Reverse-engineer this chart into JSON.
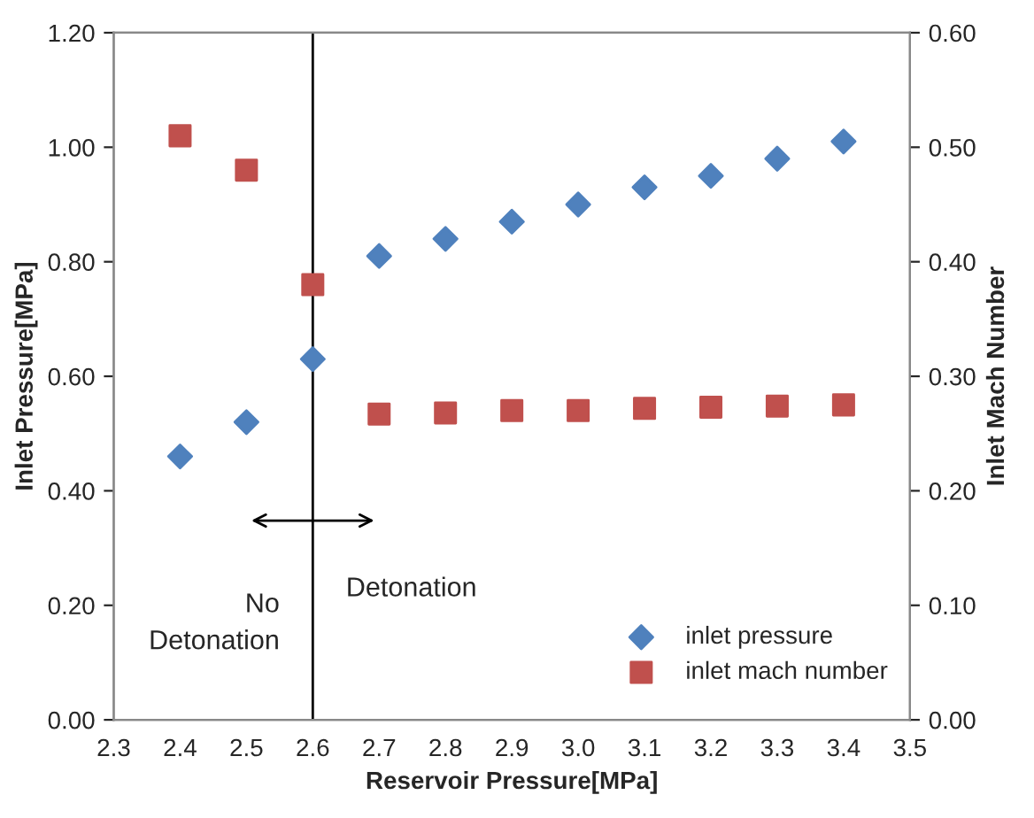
{
  "chart_data": {
    "type": "scatter",
    "xlabel": "Reservoir Pressure[MPa]",
    "ylabel": "Inlet Pressure[MPa]",
    "y2label": "Inlet Mach Number",
    "x": [
      2.4,
      2.5,
      2.6,
      2.7,
      2.8,
      2.9,
      3.0,
      3.1,
      3.2,
      3.3,
      3.4
    ],
    "series": [
      {
        "name": "inlet pressure",
        "color": "#4f81bd",
        "marker": "diamond",
        "values": [
          0.46,
          0.52,
          0.63,
          0.81,
          0.84,
          0.87,
          0.9,
          0.93,
          0.95,
          0.98,
          1.01
        ]
      },
      {
        "name": "inlet mach number",
        "color": "#c0504d",
        "marker": "square",
        "axis": "y2",
        "values": [
          0.51,
          0.48,
          0.38,
          0.267,
          0.268,
          0.27,
          0.27,
          0.272,
          0.273,
          0.274,
          0.275
        ]
      }
    ],
    "xlim": [
      2.3,
      3.5
    ],
    "xticks": [
      2.3,
      2.4,
      2.5,
      2.6,
      2.7,
      2.8,
      2.9,
      {
        "value": 3.0,
        "label": "3.0"
      },
      3.1,
      3.2,
      3.3,
      3.4,
      3.5
    ],
    "ylim": [
      0,
      1.2
    ],
    "yticks": [
      {
        "value": 0,
        "label": "0.00"
      },
      {
        "value": 0.2,
        "label": "0.20"
      },
      {
        "value": 0.4,
        "label": "0.40"
      },
      {
        "value": 0.6,
        "label": "0.60"
      },
      {
        "value": 0.8,
        "label": "0.80"
      },
      {
        "value": 1.0,
        "label": "1.00"
      },
      {
        "value": 1.2,
        "label": "1.20"
      }
    ],
    "y2lim": [
      0,
      0.6
    ],
    "y2ticks": [
      {
        "value": 0,
        "label": "0.00"
      },
      {
        "value": 0.1,
        "label": "0.10"
      },
      {
        "value": 0.2,
        "label": "0.20"
      },
      {
        "value": 0.3,
        "label": "0.30"
      },
      {
        "value": 0.4,
        "label": "0.40"
      },
      {
        "value": 0.5,
        "label": "0.50"
      },
      {
        "value": 0.6,
        "label": "0.60"
      }
    ],
    "ref_lines": [
      {
        "axis": "x",
        "value": 2.6,
        "color": "#000000"
      }
    ],
    "annotations": [
      "No\nDetonation",
      "Detonation"
    ],
    "legend": "bottom right",
    "grid": false
  }
}
